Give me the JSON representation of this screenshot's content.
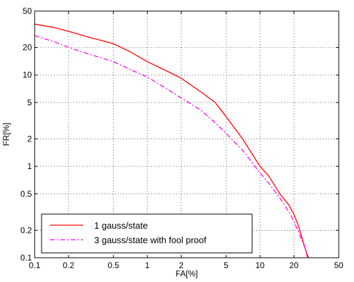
{
  "chart_data": {
    "type": "line",
    "title": "",
    "xlabel": "FA[%]",
    "ylabel": "FR[%]",
    "xscale": "log",
    "yscale": "log",
    "xlim": [
      0.1,
      50
    ],
    "ylim": [
      0.1,
      50
    ],
    "grid": true,
    "legend_position": "bottom-left",
    "xticks": [
      0.1,
      0.2,
      0.5,
      1,
      2,
      5,
      10,
      20,
      50
    ],
    "xtick_labels": [
      "0.1",
      "0.2",
      "0.5",
      "1",
      "2",
      "5",
      "10",
      "20",
      "50"
    ],
    "yticks": [
      0.1,
      0.2,
      0.5,
      1,
      2,
      5,
      10,
      20,
      50
    ],
    "ytick_labels": [
      "0.1",
      "0.2",
      "0.5",
      "1",
      "2",
      "5",
      "10",
      "20",
      "50"
    ],
    "series": [
      {
        "name": "1 gauss/state",
        "color": "#ff0000",
        "style": "solid",
        "x": [
          0.1,
          0.15,
          0.2,
          0.3,
          0.5,
          0.7,
          1,
          1.5,
          2,
          3,
          4,
          5,
          7,
          10,
          12,
          15,
          18,
          20,
          22,
          25,
          26.5
        ],
        "y": [
          36,
          33,
          30,
          26,
          22,
          18,
          14,
          11,
          9.2,
          6.5,
          5,
          3.5,
          2.0,
          1.0,
          0.78,
          0.5,
          0.38,
          0.3,
          0.22,
          0.13,
          0.1
        ]
      },
      {
        "name": "3 gauss/state with fool proof",
        "color": "#ff00ff",
        "style": "dashdot",
        "x": [
          0.1,
          0.15,
          0.2,
          0.3,
          0.5,
          0.7,
          1,
          1.5,
          2,
          3,
          4,
          5,
          7,
          10,
          12,
          15,
          18,
          20,
          22,
          25,
          27
        ],
        "y": [
          27,
          23,
          20,
          17,
          14,
          11.5,
          9.5,
          7,
          5.6,
          4.1,
          3.0,
          2.3,
          1.5,
          0.85,
          0.65,
          0.45,
          0.32,
          0.25,
          0.19,
          0.13,
          0.1
        ]
      }
    ]
  }
}
